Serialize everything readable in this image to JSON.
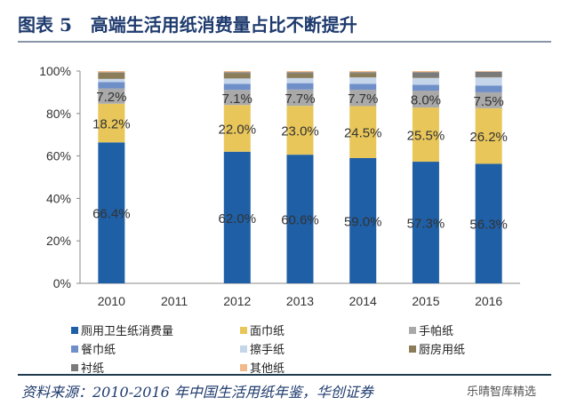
{
  "title": "图表 5   高端生活用纸消费量占比不断提升",
  "source": "资料来源：2010-2016 年中国生活用纸年鉴，华创证券",
  "watermark": "乐晴智库精选",
  "chart_data": {
    "type": "bar",
    "stacked": true,
    "categories": [
      "2010",
      "2011",
      "2012",
      "2013",
      "2014",
      "2015",
      "2016"
    ],
    "ylim": [
      0,
      100
    ],
    "yticks": [
      "0%",
      "20%",
      "40%",
      "60%",
      "80%",
      "100%"
    ],
    "grid": false,
    "legend_position": "bottom",
    "series": [
      {
        "name": "厕用卫生纸消费量",
        "color": "#1f5fa6",
        "values": [
          66.4,
          null,
          62.0,
          60.6,
          59.0,
          57.3,
          56.3
        ],
        "labels": [
          "66.4%",
          "",
          "62.0%",
          "60.6%",
          "59.0%",
          "57.3%",
          "56.3%"
        ]
      },
      {
        "name": "面巾纸",
        "color": "#e8c65a",
        "values": [
          18.2,
          null,
          22.0,
          23.0,
          24.5,
          25.5,
          26.2
        ],
        "labels": [
          "18.2%",
          "",
          "22.0%",
          "23.0%",
          "24.5%",
          "25.5%",
          "26.2%"
        ]
      },
      {
        "name": "手帕纸",
        "color": "#a9a9a9",
        "values": [
          7.2,
          null,
          7.1,
          7.7,
          7.7,
          8.0,
          7.5
        ],
        "labels": [
          "7.2%",
          "",
          "7.1%",
          "7.7%",
          "7.7%",
          "8.0%",
          "7.5%"
        ]
      },
      {
        "name": "餐巾纸",
        "color": "#6f8fc8",
        "values": [
          3.0,
          null,
          2.9,
          3.0,
          2.8,
          2.7,
          3.2
        ],
        "labels": []
      },
      {
        "name": "擦手纸",
        "color": "#c5d5ea",
        "values": [
          1.5,
          null,
          2.5,
          2.4,
          3.0,
          3.2,
          3.8
        ]
      },
      {
        "name": "厨房用纸",
        "color": "#8b7d5a",
        "values": [
          3.0,
          null,
          2.5,
          2.3,
          2.0,
          0.3,
          0.3
        ]
      },
      {
        "name": "衬纸",
        "color": "#7a7a7a",
        "values": [
          0.2,
          null,
          0.5,
          0.5,
          0.5,
          2.5,
          2.4
        ]
      },
      {
        "name": "其他纸",
        "color": "#f2b98a",
        "values": [
          0.5,
          null,
          0.5,
          0.5,
          0.5,
          0.5,
          0.3
        ]
      }
    ]
  }
}
